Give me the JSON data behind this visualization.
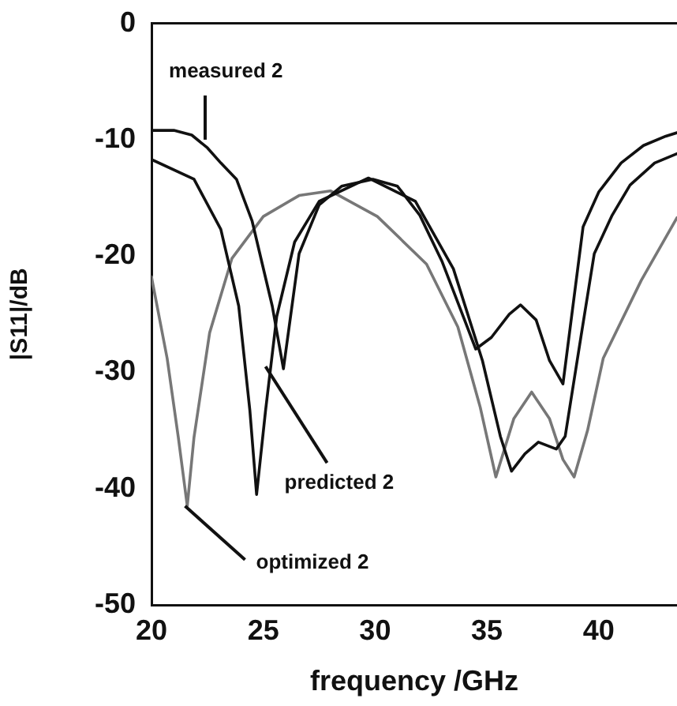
{
  "chart_data": {
    "type": "line",
    "xlabel": "frequency /GHz",
    "ylabel": "|S11|/dB",
    "xlim": [
      20,
      43.5
    ],
    "xticks": [
      20,
      25,
      30,
      35,
      40
    ],
    "ylim": [
      -50,
      0
    ],
    "yticks": [
      -50,
      -40,
      -30,
      -20,
      -10,
      0
    ],
    "grid": false,
    "legend": false,
    "marker": "none",
    "line_style": "solid",
    "series": [
      {
        "color": "#111111",
        "x": [
          20,
          21,
          21.8,
          22.5,
          23.1,
          23.8,
          24.5,
          25.4,
          25.9,
          26.6,
          27.5,
          28.5,
          29.9,
          31,
          32,
          33,
          34,
          34.5,
          35.2,
          36,
          36.5,
          37.2,
          37.8,
          38.4,
          39.3,
          40,
          41,
          42,
          43,
          43.5
        ],
        "values": [
          -9.2,
          -9.2,
          -9.6,
          -10.7,
          -12,
          -13.4,
          -17,
          -24.3,
          -29.7,
          -19.8,
          -15.6,
          -14,
          -13.4,
          -14,
          -16.5,
          -20.5,
          -25.5,
          -28,
          -27,
          -25,
          -24.2,
          -25.5,
          -29,
          -31,
          -17.5,
          -14.5,
          -12,
          -10.5,
          -9.7,
          -9.4
        ]
      },
      {
        "color": "#111111",
        "x": [
          20,
          21.9,
          23.1,
          23.9,
          24.4,
          24.7,
          25.1,
          25.6,
          26.4,
          27.5,
          29.7,
          31.8,
          33.5,
          34.8,
          35.6,
          36.1,
          36.7,
          37.3,
          38.1,
          38.5,
          39.2,
          39.8,
          40.6,
          41.4,
          42.5,
          43.5
        ],
        "values": [
          -11.7,
          -13.4,
          -17.7,
          -24.3,
          -33.3,
          -40.5,
          -33.3,
          -25.2,
          -18.8,
          -15.3,
          -13.3,
          -15.3,
          -21.1,
          -29,
          -35.5,
          -38.5,
          -37,
          -36,
          -36.6,
          -35.5,
          -27,
          -19.8,
          -16.5,
          -13.9,
          -12,
          -11.2
        ]
      },
      {
        "color": "#777777",
        "x": [
          20,
          20.7,
          21.2,
          21.6,
          21.9,
          22.6,
          23.6,
          25,
          26.6,
          28,
          30.1,
          32.3,
          33.7,
          34.7,
          35.4,
          36.2,
          37,
          37.8,
          38.4,
          38.9,
          39.5,
          40.2,
          41.9,
          43.5
        ],
        "values": [
          -21.8,
          -28.8,
          -35.6,
          -41.5,
          -35.6,
          -26.6,
          -20.2,
          -16.6,
          -14.8,
          -14.4,
          -16.6,
          -20.7,
          -26.1,
          -33,
          -39,
          -34,
          -31.7,
          -34,
          -37.5,
          -39,
          -35,
          -28.8,
          -22.1,
          -16.7
        ]
      }
    ],
    "annotations": [
      {
        "text": "measured 2",
        "x": 22.4,
        "y": -10
      },
      {
        "text": "predicted 2",
        "x": 25.1,
        "y": -29.5
      },
      {
        "text": "optimized 2",
        "x": 21.5,
        "y": -41.5
      }
    ]
  }
}
